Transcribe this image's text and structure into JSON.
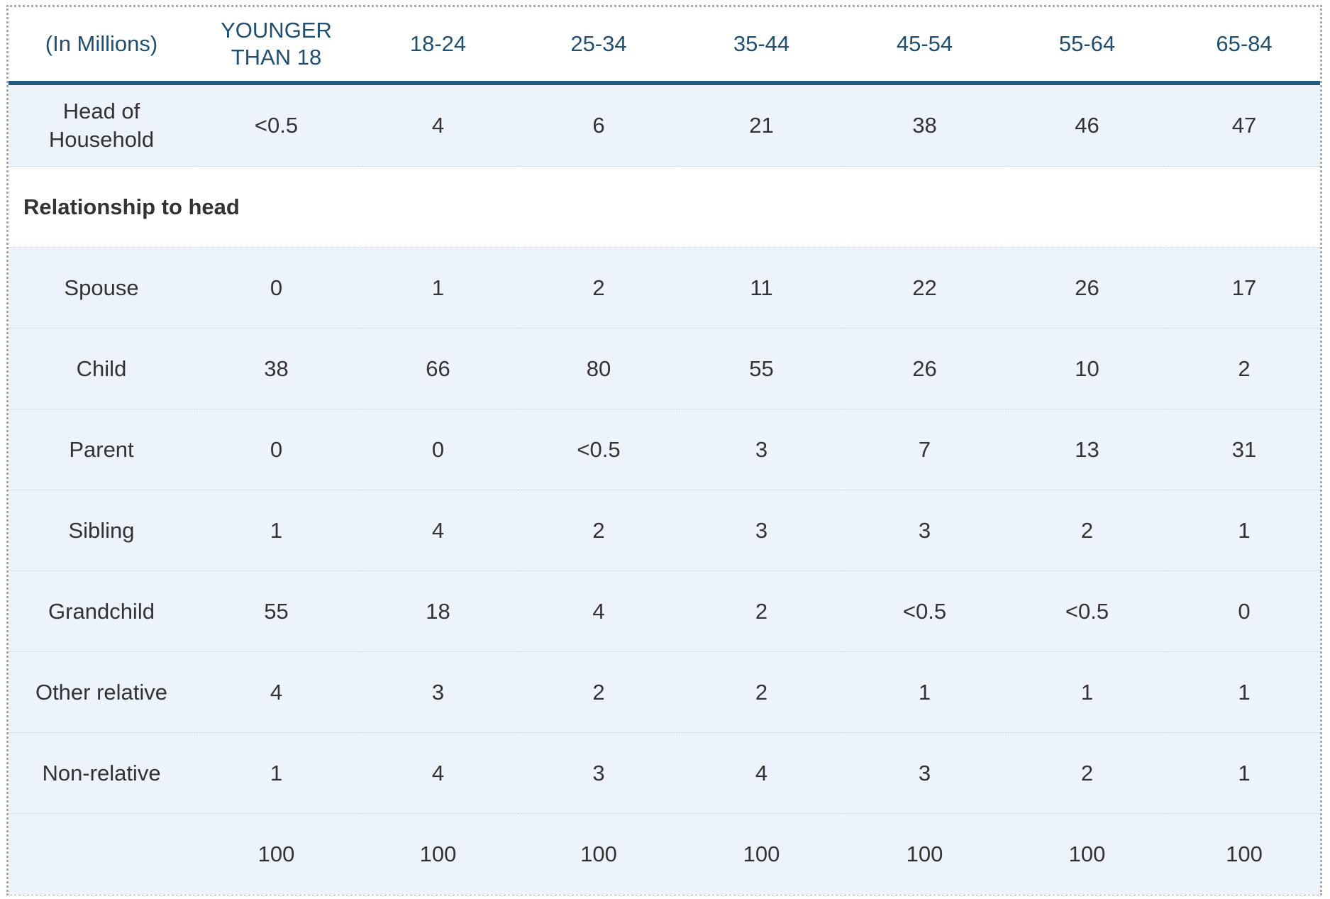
{
  "table": {
    "columns": [
      "(In Millions)",
      "YOUNGER THAN 18",
      "18-24",
      "25-34",
      "35-44",
      "45-54",
      "55-64",
      "65-84"
    ],
    "head_row": {
      "label": "Head of Household",
      "values": [
        "<0.5",
        "4",
        "6",
        "21",
        "38",
        "46",
        "47"
      ]
    },
    "section_label": "Relationship to head",
    "rows": [
      {
        "label": "Spouse",
        "values": [
          "0",
          "1",
          "2",
          "11",
          "22",
          "26",
          "17"
        ]
      },
      {
        "label": "Child",
        "values": [
          "38",
          "66",
          "80",
          "55",
          "26",
          "10",
          "2"
        ]
      },
      {
        "label": "Parent",
        "values": [
          "0",
          "0",
          "<0.5",
          "3",
          "7",
          "13",
          "31"
        ]
      },
      {
        "label": "Sibling",
        "values": [
          "1",
          "4",
          "2",
          "3",
          "3",
          "2",
          "1"
        ]
      },
      {
        "label": "Grandchild",
        "values": [
          "55",
          "18",
          "4",
          "2",
          "<0.5",
          "<0.5",
          "0"
        ]
      },
      {
        "label": "Other relative",
        "values": [
          "4",
          "3",
          "2",
          "2",
          "1",
          "1",
          "1"
        ]
      },
      {
        "label": "Non-relative",
        "values": [
          "1",
          "4",
          "3",
          "4",
          "3",
          "2",
          "1"
        ]
      }
    ],
    "total_row": {
      "label": "",
      "values": [
        "100",
        "100",
        "100",
        "100",
        "100",
        "100",
        "100"
      ]
    }
  },
  "colors": {
    "header_text": "#1f4f72",
    "header_rule": "#255a7b",
    "row_shade": "#ecf3fa",
    "body_text": "#333333"
  }
}
